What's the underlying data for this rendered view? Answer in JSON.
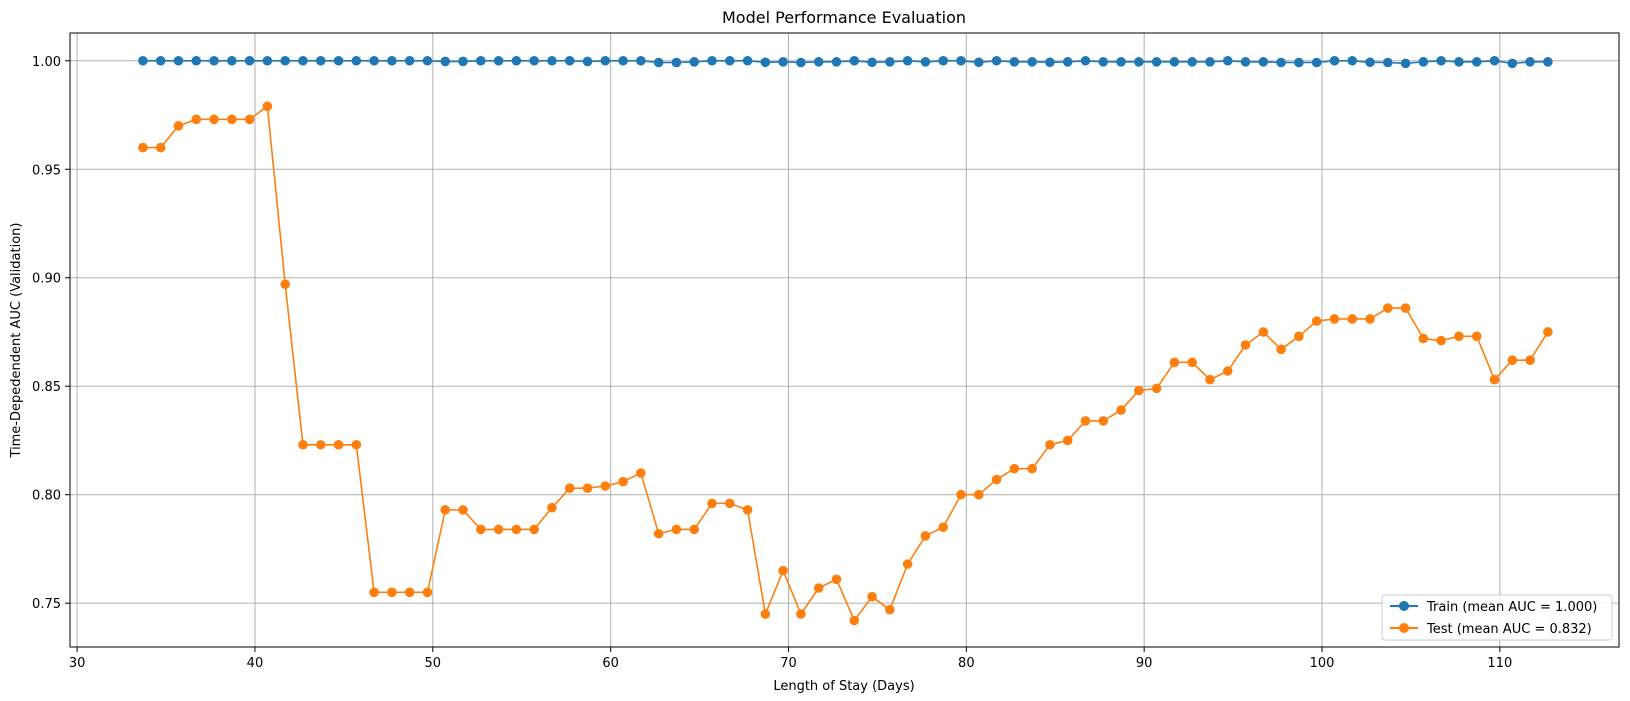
{
  "chart_data": {
    "type": "line",
    "title": "Model Performance Evaluation",
    "xlabel": "Length of Stay (Days)",
    "ylabel": "Time-Depedendent AUC (Validation)",
    "xlim": [
      29.6,
      116.7
    ],
    "ylim": [
      0.7298,
      1.0128
    ],
    "xticks": [
      30,
      40,
      50,
      60,
      70,
      80,
      90,
      100,
      110
    ],
    "yticks": [
      0.75,
      0.8,
      0.85,
      0.9,
      0.95,
      1.0
    ],
    "ytick_labels": [
      "0.75",
      "0.80",
      "0.85",
      "0.90",
      "0.95",
      "1.00"
    ],
    "grid": true,
    "legend_position": "bottom-right",
    "x": [
      33.7,
      34.7,
      35.7,
      36.7,
      37.7,
      38.7,
      39.7,
      40.7,
      41.7,
      42.7,
      43.7,
      44.7,
      45.7,
      46.7,
      47.7,
      48.7,
      49.7,
      50.7,
      51.7,
      52.7,
      53.7,
      54.7,
      55.7,
      56.7,
      57.7,
      58.7,
      59.7,
      60.7,
      61.7,
      62.7,
      63.7,
      64.7,
      65.7,
      66.7,
      67.7,
      68.7,
      69.7,
      70.7,
      71.7,
      72.7,
      73.7,
      74.7,
      75.7,
      76.7,
      77.7,
      78.7,
      79.7,
      80.7,
      81.7,
      82.7,
      83.7,
      84.7,
      85.7,
      86.7,
      87.7,
      88.7,
      89.7,
      90.7,
      91.7,
      92.7,
      93.7,
      94.7,
      95.7,
      96.7,
      97.7,
      98.7,
      99.7,
      100.7,
      101.7,
      102.7,
      103.7,
      104.7,
      105.7,
      106.7,
      107.7,
      108.7,
      109.7,
      110.7,
      111.7,
      112.7
    ],
    "series": [
      {
        "name": "Train (mean AUC = 1.000)",
        "color": "#1f77b4",
        "values": [
          1.0,
          1.0,
          1.0,
          1.0,
          1.0,
          1.0,
          1.0,
          1.0,
          1.0,
          1.0,
          1.0,
          1.0,
          1.0,
          1.0,
          1.0,
          1.0,
          1.0,
          0.9997,
          0.9997,
          1.0,
          1.0,
          1.0,
          1.0,
          1.0,
          1.0,
          0.9997,
          1.0,
          1.0,
          1.0,
          0.9992,
          0.9992,
          0.9995,
          1.0,
          1.0,
          1.0,
          0.9993,
          0.9995,
          0.9992,
          0.9995,
          0.9995,
          1.0,
          0.9993,
          0.9995,
          1.0,
          0.9995,
          1.0,
          1.0,
          0.9993,
          1.0,
          0.9995,
          0.9995,
          0.9993,
          0.9995,
          1.0,
          0.9995,
          0.9995,
          0.9995,
          0.9995,
          0.9995,
          0.9995,
          0.9995,
          1.0,
          0.9995,
          0.9995,
          0.9992,
          0.9992,
          0.9992,
          1.0,
          1.0,
          0.9993,
          0.9992,
          0.9988,
          0.9995,
          1.0,
          0.9995,
          0.9995,
          1.0,
          0.9988,
          0.9995,
          0.9995
        ]
      },
      {
        "name": "Test (mean AUC = 0.832)",
        "color": "#ff7f0e",
        "values": [
          0.96,
          0.96,
          0.97,
          0.973,
          0.973,
          0.973,
          0.973,
          0.979,
          0.897,
          0.823,
          0.823,
          0.823,
          0.823,
          0.755,
          0.755,
          0.755,
          0.755,
          0.793,
          0.793,
          0.784,
          0.784,
          0.784,
          0.784,
          0.794,
          0.803,
          0.803,
          0.804,
          0.806,
          0.81,
          0.782,
          0.784,
          0.784,
          0.796,
          0.796,
          0.793,
          0.745,
          0.765,
          0.745,
          0.757,
          0.761,
          0.742,
          0.753,
          0.747,
          0.768,
          0.781,
          0.785,
          0.8,
          0.8,
          0.807,
          0.812,
          0.812,
          0.823,
          0.825,
          0.834,
          0.834,
          0.839,
          0.848,
          0.849,
          0.861,
          0.861,
          0.853,
          0.857,
          0.869,
          0.875,
          0.867,
          0.873,
          0.88,
          0.881,
          0.881,
          0.881,
          0.886,
          0.886,
          0.872,
          0.871,
          0.873,
          0.873,
          0.853,
          0.862,
          0.862,
          0.875
        ]
      }
    ]
  }
}
